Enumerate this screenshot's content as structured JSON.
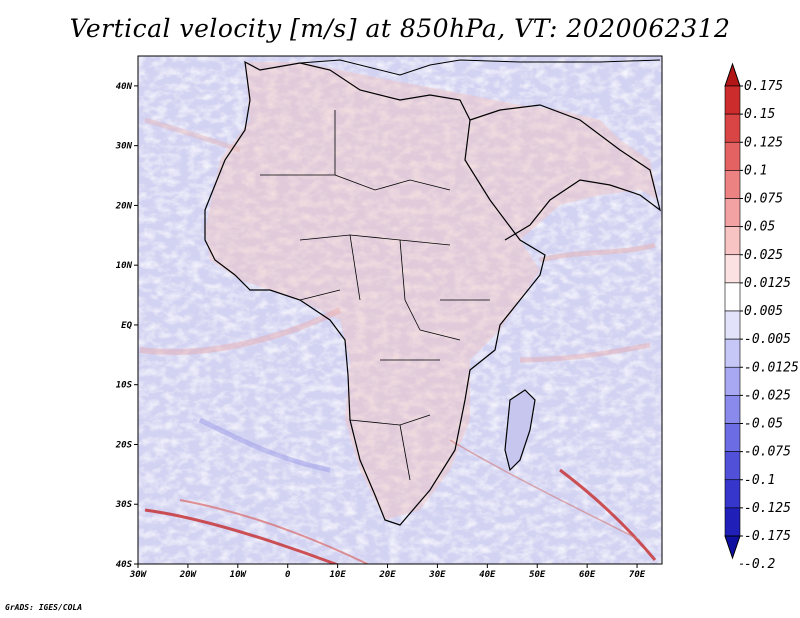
{
  "title": "Vertical velocity [m/s] at 850hPa, VT: 2020062312",
  "credit": "GrADS: IGES/COLA",
  "map": {
    "lon_range": [
      -30,
      75
    ],
    "lat_range": [
      -40,
      45
    ],
    "x_ticks": [
      {
        "value": -30,
        "label": "30W"
      },
      {
        "value": -20,
        "label": "20W"
      },
      {
        "value": -10,
        "label": "10W"
      },
      {
        "value": 0,
        "label": "0"
      },
      {
        "value": 10,
        "label": "10E"
      },
      {
        "value": 20,
        "label": "20E"
      },
      {
        "value": 30,
        "label": "30E"
      },
      {
        "value": 40,
        "label": "40E"
      },
      {
        "value": 50,
        "label": "50E"
      },
      {
        "value": 60,
        "label": "60E"
      },
      {
        "value": 70,
        "label": "70E"
      }
    ],
    "y_ticks": [
      {
        "value": 40,
        "label": "40N"
      },
      {
        "value": 30,
        "label": "30N"
      },
      {
        "value": 20,
        "label": "20N"
      },
      {
        "value": 10,
        "label": "10N"
      },
      {
        "value": 0,
        "label": "EQ"
      },
      {
        "value": -10,
        "label": "10S"
      },
      {
        "value": -20,
        "label": "20S"
      },
      {
        "value": -30,
        "label": "30S"
      },
      {
        "value": -40,
        "label": "40S"
      }
    ]
  },
  "colorbar": {
    "colors": [
      "#b31616",
      "#cc2c2c",
      "#d94545",
      "#e46262",
      "#ec8282",
      "#f2a2a2",
      "#f7c3c3",
      "#fbe1e1",
      "#ffffff",
      "#e2e2fb",
      "#c6c6f7",
      "#a8a8f2",
      "#8a8aec",
      "#6c6ce5",
      "#5050d9",
      "#3636cc",
      "#2020b9",
      "#1010a0"
    ],
    "labels": [
      "0.175",
      "0.15",
      "0.125",
      "0.1",
      "0.075",
      "0.05",
      "0.025",
      "0.0125",
      "0.005",
      "-0.005",
      "-0.0125",
      "-0.025",
      "-0.05",
      "-0.075",
      "-0.1",
      "-0.125",
      "-0.175",
      "-0.2"
    ]
  }
}
